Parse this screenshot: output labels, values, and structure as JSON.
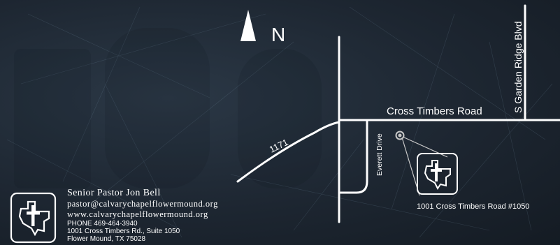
{
  "compass": {
    "letter": "N"
  },
  "roads": {
    "cross_timbers": "Cross Timbers Road",
    "garden_ridge": "S Garden Ridge Blvd",
    "everett": "Everett Drive",
    "fm1171": "1171"
  },
  "location": {
    "address_label": "1001 Cross Timbers Road #1050"
  },
  "contact": {
    "pastor": "Senior Pastor Jon Bell",
    "email": "pastor@calvarychapelflowermound.org",
    "website": "www.calvarychapelflowermound.org",
    "phone": "PHONE 469-464-3940",
    "address_line1": "1001 Cross Timbers Rd., Suite 1050",
    "address_line2": "Flower Mound, TX 75028"
  },
  "colors": {
    "background": "#1c2530",
    "roads": "#ffffff",
    "marker": "#c8c8c8"
  },
  "icons": {
    "logo": "texas-cross-logo-icon",
    "compass": "north-arrow-icon",
    "marker": "location-marker-icon"
  }
}
